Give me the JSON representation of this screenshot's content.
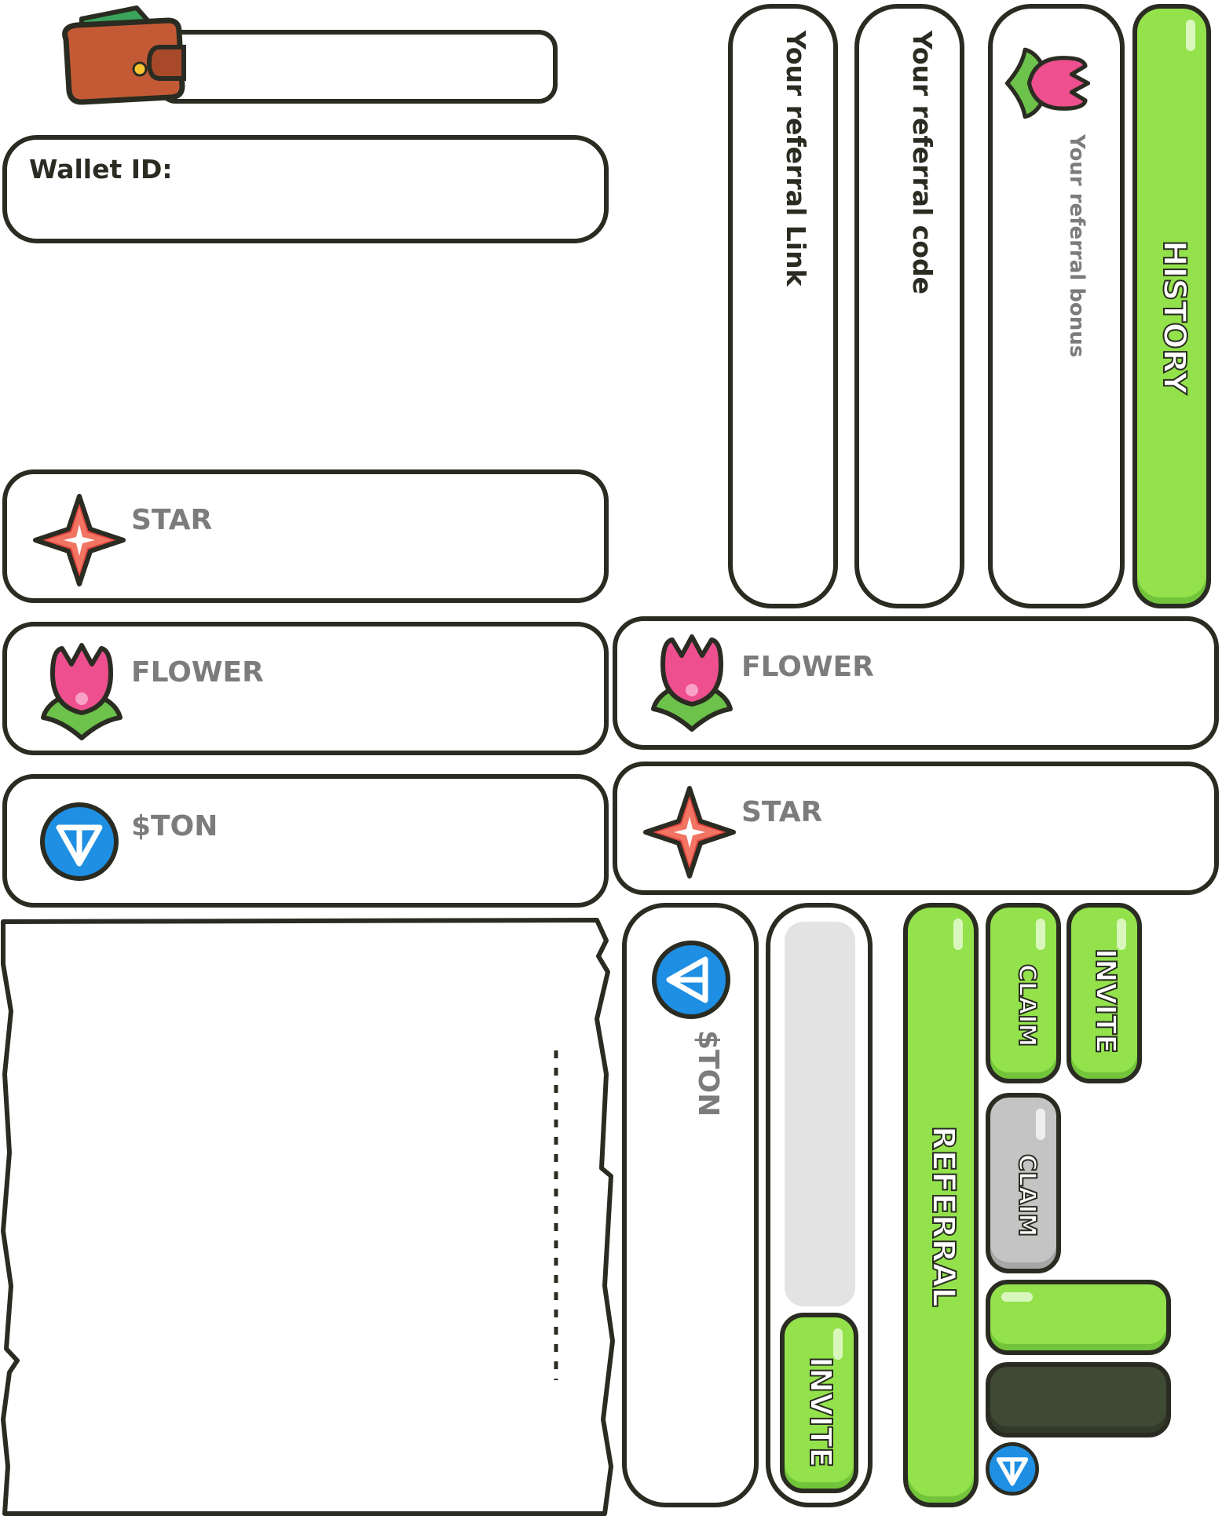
{
  "wallet": {
    "icon": "wallet-icon",
    "id_label": "Wallet ID:"
  },
  "balances_left": [
    {
      "icon": "star-icon",
      "label": "STAR"
    },
    {
      "icon": "flower-icon",
      "label": "FLOWER"
    },
    {
      "icon": "ton-icon",
      "label": "$TON"
    }
  ],
  "balances_right": [
    {
      "icon": "flower-icon",
      "label": "FLOWER"
    },
    {
      "icon": "star-icon",
      "label": "STAR"
    }
  ],
  "referral": {
    "link_label": "Your referral Link",
    "code_label": "Your referral code",
    "bonus_label": "Your referral bonus",
    "history_button": "HISTORY",
    "referral_button": "REFERRAL",
    "ton_label": "$TON",
    "invite_button": "INVITE"
  },
  "buttons": {
    "claim": "CLAIM",
    "invite": "INVITE",
    "claim_disabled": "CLAIM"
  },
  "colors": {
    "green": "#93e24c",
    "outline": "#2a2c22",
    "gray_text": "#7c7c7c",
    "disabled": "#c4c4c4",
    "dark_button": "#3f4a35",
    "ton_blue": "#1e8fe3"
  }
}
